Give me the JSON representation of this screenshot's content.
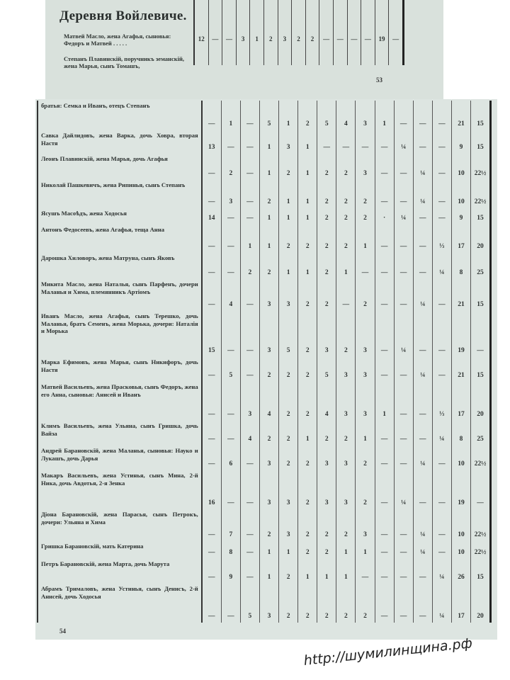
{
  "top_page": {
    "heading": "Деревня Войлевиче.",
    "rows": [
      {
        "name": "Матвей Масло, жена Агафья, сыновья: Федоръ и Матвей . . . . .",
        "values": [
          "12",
          "—",
          "—",
          "3",
          "1",
          "2",
          "3",
          "2",
          "2",
          "—",
          "—",
          "—",
          "—",
          "19",
          "—"
        ]
      },
      {
        "name": "Степанъ Плавинскій, поручникъ земанскій, жена Марья, сынъ Томашъ,",
        "values": []
      }
    ],
    "page_number": "53"
  },
  "lower_page": {
    "rows": [
      {
        "name": "братья: Семка и Иванъ, отецъ Степанъ",
        "values": [
          "—",
          "1",
          "—",
          "5",
          "1",
          "2",
          "5",
          "4",
          "3",
          "1",
          "—",
          "—",
          "—",
          "21",
          "15"
        ]
      },
      {
        "name": "Савка Дайлидовъ, жена Варка, дочь Ховра, вторая Настя",
        "values": [
          "13",
          "—",
          "—",
          "1",
          "3",
          "1",
          "—",
          "—",
          "—",
          "—",
          "¼",
          "—",
          "—",
          "9",
          "15"
        ]
      },
      {
        "name": "Леонъ Плавинскій, жена Марья, дочь Агафья",
        "values": [
          "—",
          "2",
          "—",
          "1",
          "2",
          "1",
          "2",
          "2",
          "3",
          "—",
          "—",
          "¼",
          "—",
          "10",
          "22½"
        ]
      },
      {
        "name": "Николай Пашкевичъ, жена Рипинья, сынъ Степанъ",
        "values": [
          "—",
          "3",
          "—",
          "2",
          "1",
          "1",
          "2",
          "2",
          "2",
          "—",
          "—",
          "¼",
          "—",
          "10",
          "22½"
        ]
      },
      {
        "name": "Ясушъ Масоѣдъ, жена Ходосья",
        "values": [
          "14",
          "—",
          "—",
          "1",
          "1",
          "1",
          "2",
          "2",
          "2",
          "·",
          "¼",
          "—",
          "—",
          "9",
          "15"
        ]
      },
      {
        "name": "Антонъ Федосеевъ, жена Агафья, теща Анна",
        "values": [
          "—",
          "—",
          "1",
          "1",
          "2",
          "2",
          "2",
          "2",
          "1",
          "—",
          "—",
          "—",
          "⅓",
          "17",
          "20"
        ]
      },
      {
        "name": "Дарошка Хиловоръ, жена Матруна, сынъ Яковъ",
        "values": [
          "—",
          "—",
          "2",
          "2",
          "1",
          "1",
          "2",
          "1",
          "—",
          "—",
          "—",
          "—",
          "¼",
          "8",
          "25"
        ]
      },
      {
        "name": "Микита Масло, жена Наталья, сынъ Парфенъ, дочери Маланья и Хима, племянникъ Артіомъ",
        "values": [
          "—",
          "4",
          "—",
          "3",
          "3",
          "2",
          "2",
          "—",
          "2",
          "—",
          "—",
          "¼",
          "—",
          "21",
          "15"
        ]
      },
      {
        "name": "Иванъ Масло, жена Агафья, сынъ Терешко, дочь Маланья, братъ Семенъ, жена Морька, дочери: Наталія и Морька",
        "values": [
          "15",
          "—",
          "—",
          "3",
          "5",
          "2",
          "3",
          "2",
          "3",
          "—",
          "¼",
          "—",
          "—",
          "19",
          "—"
        ]
      },
      {
        "name": "Марка Ефимовъ, жена Марья, сынъ Никифоръ, дочь Настя",
        "values": [
          "—",
          "5",
          "—",
          "2",
          "2",
          "2",
          "5",
          "3",
          "3",
          "—",
          "—",
          "¼",
          "—",
          "21",
          "15"
        ]
      },
      {
        "name": "Матвей Васильевъ, жена Прасковья, сынъ Федоръ, жена его Анна, сыновья: Анисей и Иванъ",
        "values": [
          "—",
          "—",
          "3",
          "4",
          "2",
          "2",
          "4",
          "3",
          "3",
          "1",
          "—",
          "—",
          "⅓",
          "17",
          "20"
        ]
      },
      {
        "name": "Климъ Васильевъ, жена Ульяна, сынъ Гришка, дочь Вайза",
        "values": [
          "—",
          "—",
          "4",
          "2",
          "2",
          "1",
          "2",
          "2",
          "1",
          "—",
          "—",
          "—",
          "¼",
          "8",
          "25"
        ]
      },
      {
        "name": "Андрей Барановскій, жена Маланья, сыновья: Науко и Лукашъ, дочь Дарья",
        "values": [
          "—",
          "6",
          "—",
          "3",
          "2",
          "2",
          "3",
          "3",
          "2",
          "—",
          "—",
          "¼",
          "—",
          "10",
          "22½"
        ]
      },
      {
        "name": "Макаръ Васильевъ, жена Устинья, сынъ Мина, 2-й Ника, дочь Авдотья, 2-я Зенка",
        "values": [
          "16",
          "—",
          "—",
          "3",
          "3",
          "2",
          "3",
          "3",
          "2",
          "—",
          "¼",
          "—",
          "—",
          "19",
          "—"
        ]
      },
      {
        "name": "Діона Барановскій, жена Парасья, сынъ Петрокъ, дочери: Ульяна и Хима",
        "values": [
          "—",
          "7",
          "—",
          "2",
          "3",
          "2",
          "2",
          "2",
          "3",
          "—",
          "—",
          "¼",
          "—",
          "10",
          "22½"
        ]
      },
      {
        "name": "Гришка Барановскій, мать Катерина",
        "values": [
          "—",
          "8",
          "—",
          "1",
          "1",
          "2",
          "2",
          "1",
          "1",
          "—",
          "—",
          "¼",
          "—",
          "10",
          "22½"
        ]
      },
      {
        "name": "Петръ Барановскій, жена Марта, дочь Марута",
        "values": [
          "—",
          "9",
          "—",
          "1",
          "2",
          "1",
          "1",
          "1",
          "—",
          "—",
          "—",
          "—",
          "¼",
          "26",
          "15"
        ]
      },
      {
        "name": "Абрамъ Трималовъ, жена Устинья, сынъ Денисъ, 2-й Анисей, дочь Ходосья",
        "values": [
          "—",
          "—",
          "5",
          "3",
          "2",
          "2",
          "2",
          "2",
          "2",
          "—",
          "—",
          "—",
          "¼",
          "17",
          "20"
        ]
      }
    ],
    "page_number": "54"
  },
  "watermark": "http://шумилинщина.рф"
}
